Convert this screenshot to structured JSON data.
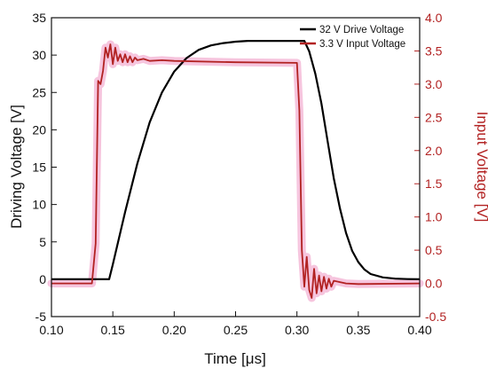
{
  "chart_data": {
    "type": "line",
    "xlabel": "Time [μs]",
    "ylabel_left": "Driving Voltage [V]",
    "ylabel_right": "Input Voltage [V]",
    "xlim": [
      0.1,
      0.4
    ],
    "ylim_left": [
      -5,
      35
    ],
    "ylim_right": [
      -0.5,
      4.0
    ],
    "x_ticks": [
      "0.10",
      "0.15",
      "0.20",
      "0.25",
      "0.30",
      "0.35",
      "0.40"
    ],
    "y_left_ticks": [
      "-5",
      "0",
      "5",
      "10",
      "15",
      "20",
      "25",
      "30",
      "35"
    ],
    "y_right_ticks": [
      "-0.5",
      "0.0",
      "0.5",
      "1.0",
      "1.5",
      "2.0",
      "2.5",
      "3.0",
      "3.5",
      "4.0"
    ],
    "grid": false,
    "legend_position": "top-right",
    "colors": {
      "drive": "#000000",
      "input": "#b22222",
      "input_glow": "#f4b6d6",
      "right_axis": "#b22222"
    },
    "series": [
      {
        "name": "32 V Drive Voltage",
        "axis": "left",
        "x": [
          0.1,
          0.147,
          0.15,
          0.16,
          0.17,
          0.18,
          0.19,
          0.2,
          0.21,
          0.22,
          0.23,
          0.24,
          0.25,
          0.26,
          0.27,
          0.28,
          0.29,
          0.3,
          0.306,
          0.31,
          0.315,
          0.32,
          0.325,
          0.33,
          0.335,
          0.34,
          0.345,
          0.35,
          0.355,
          0.36,
          0.37,
          0.38,
          0.39,
          0.4
        ],
        "y": [
          0,
          0,
          2.0,
          9.0,
          15.5,
          21.0,
          25.0,
          27.8,
          29.6,
          30.7,
          31.3,
          31.6,
          31.8,
          31.9,
          31.9,
          31.9,
          31.9,
          31.9,
          31.9,
          30.5,
          27.5,
          23.5,
          18.5,
          13.5,
          9.5,
          6.2,
          3.8,
          2.3,
          1.3,
          0.7,
          0.25,
          0.08,
          0.02,
          0
        ]
      },
      {
        "name": "3.3 V Input Voltage",
        "axis": "right",
        "x": [
          0.1,
          0.133,
          0.136,
          0.138,
          0.14,
          0.142,
          0.144,
          0.146,
          0.148,
          0.15,
          0.152,
          0.154,
          0.156,
          0.158,
          0.16,
          0.162,
          0.164,
          0.166,
          0.168,
          0.17,
          0.175,
          0.18,
          0.19,
          0.2,
          0.25,
          0.3,
          0.302,
          0.304,
          0.306,
          0.308,
          0.31,
          0.312,
          0.314,
          0.316,
          0.318,
          0.32,
          0.322,
          0.324,
          0.326,
          0.328,
          0.33,
          0.335,
          0.34,
          0.35,
          0.4
        ],
        "y": [
          0,
          0,
          0.6,
          3.05,
          3.0,
          3.2,
          3.55,
          3.4,
          3.6,
          3.3,
          3.55,
          3.35,
          3.45,
          3.33,
          3.45,
          3.33,
          3.42,
          3.33,
          3.4,
          3.36,
          3.38,
          3.35,
          3.36,
          3.35,
          3.33,
          3.32,
          2.6,
          0.5,
          -0.05,
          0.4,
          -0.1,
          -0.22,
          0.22,
          -0.15,
          0.12,
          -0.12,
          0.1,
          -0.08,
          0.07,
          -0.05,
          0.04,
          0.02,
          0.0,
          -0.01,
          0.0
        ]
      }
    ]
  }
}
